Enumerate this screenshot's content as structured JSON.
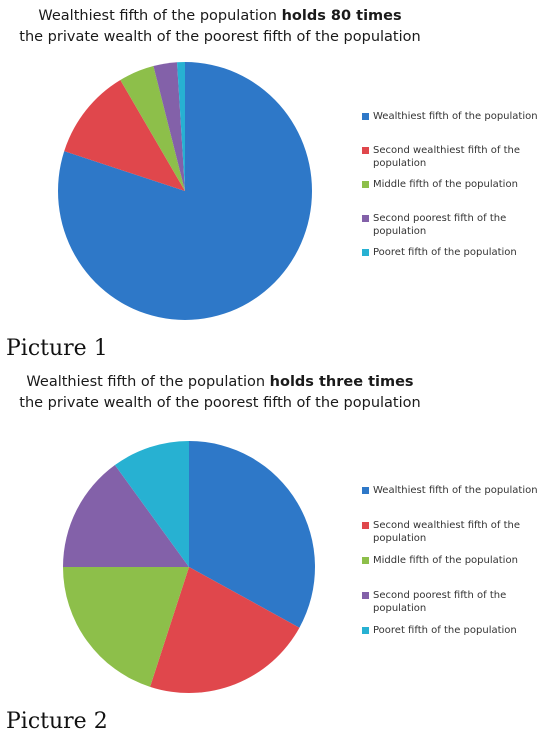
{
  "chart_data": [
    {
      "type": "pie",
      "title_normal": "Wealthiest fifth of the population",
      "title_bold": "holds 80 times",
      "subtitle": "the private wealth of the poorest fifth of the population",
      "caption": "Picture 1",
      "categories": [
        "Wealthiest fifth of the population",
        "Second wealthiest fifth of the population",
        "Middle fifth of the population",
        "Second poorest fifth of the population",
        "Pooret fifth of the population"
      ],
      "values": [
        80,
        11.5,
        4.5,
        3,
        1
      ],
      "colors": [
        "#2e78c8",
        "#e0474c",
        "#8dbf4a",
        "#8361a9",
        "#27b1d2"
      ],
      "legend_position": "right"
    },
    {
      "type": "pie",
      "title_normal": "Wealthiest fifth of the population",
      "title_bold": "holds three times",
      "subtitle": "the private wealth of the poorest fifth of the population",
      "caption": "Picture 2",
      "categories": [
        "Wealthiest fifth of the population",
        "Second wealthiest fifth of the population",
        "Middle fifth of the population",
        "Second poorest fifth of the population",
        "Pooret fifth of the population"
      ],
      "values": [
        33,
        22,
        20,
        15,
        10
      ],
      "colors": [
        "#2e78c8",
        "#e0474c",
        "#8dbf4a",
        "#8361a9",
        "#27b1d2"
      ],
      "legend_position": "right"
    }
  ]
}
